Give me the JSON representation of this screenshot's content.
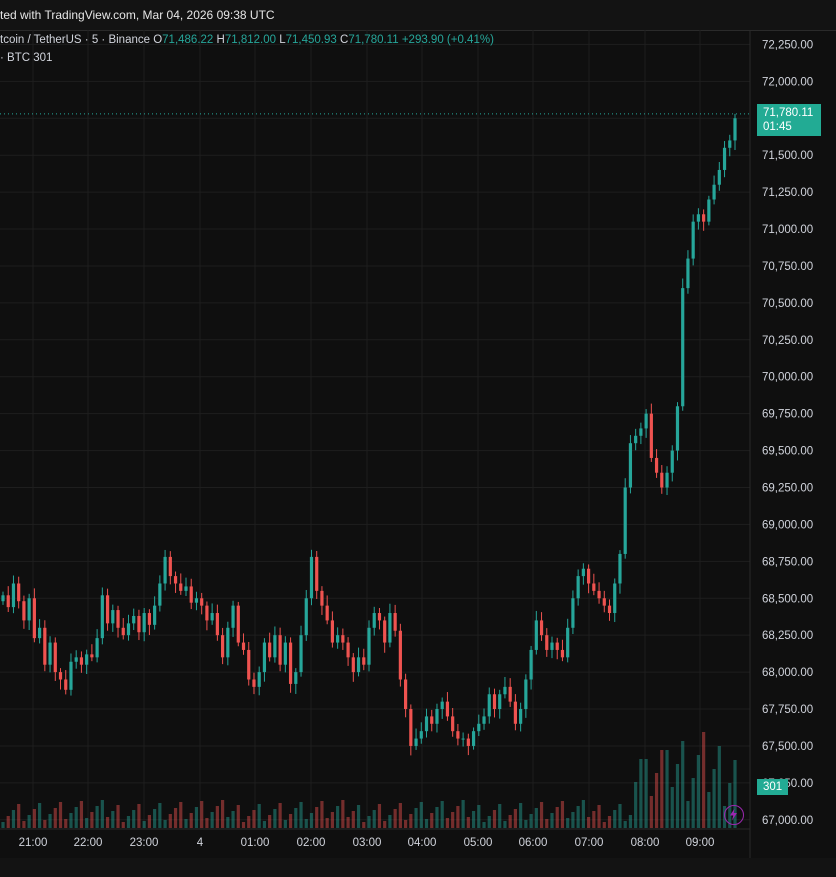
{
  "header": {
    "caption": "ted with TradingView.com, Mar 04, 2026 09:38 UTC"
  },
  "legend": {
    "symbol": "tcoin / TetherUS · 5 · Binance",
    "o_label": "O",
    "o_value": "71,486.22",
    "h_label": "H",
    "h_value": "71,812.00",
    "l_label": "L",
    "l_value": "71,450.93",
    "c_label": "C",
    "c_value": "71,780.11",
    "change": "+293.90 (+0.41%)",
    "volume_label": "· BTC",
    "volume_value": "301"
  },
  "colors": {
    "up": "#26a69a",
    "down": "#ef5350",
    "grid": "#1e1e1e",
    "axis_text": "#d1d4dc",
    "price_tag": "#22ab94"
  },
  "price_tag": {
    "price": "71,780.11",
    "countdown": "01:45"
  },
  "volume_tag": "301",
  "icons": {
    "bolt": "lightning-bolt-icon"
  },
  "chart_data": {
    "type": "candlestick",
    "interval": "5m",
    "price_axis": {
      "range": [
        66985,
        72280
      ],
      "ticks": [
        "72,250.00",
        "72,000.00",
        "71,750.00",
        "71,500.00",
        "71,250.00",
        "71,000.00",
        "70,750.00",
        "70,500.00",
        "70,250.00",
        "70,000.00",
        "69,750.00",
        "69,500.00",
        "69,250.00",
        "69,000.00",
        "68,750.00",
        "68,500.00",
        "68,250.00",
        "68,000.00",
        "67,750.00",
        "67,500.00",
        "67,250.00",
        "67,000.00"
      ],
      "tick_values": [
        72250,
        72000,
        71750,
        71500,
        71250,
        71000,
        70750,
        70500,
        70250,
        70000,
        69750,
        69500,
        69250,
        69000,
        68750,
        68500,
        68250,
        68000,
        67750,
        67500,
        67250,
        67000
      ]
    },
    "time_axis": {
      "labels": [
        "21:00",
        "22:00",
        "23:00",
        "4",
        "01:00",
        "02:00",
        "03:00",
        "04:00",
        "05:00",
        "06:00",
        "07:00",
        "08:00",
        "09:00"
      ]
    },
    "grid": true,
    "candles_close": [
      68520,
      68440,
      68600,
      68480,
      68350,
      68500,
      68230,
      68300,
      68050,
      68200,
      68000,
      67950,
      67880,
      68070,
      68100,
      68050,
      68120,
      68100,
      68230,
      68520,
      68330,
      68420,
      68300,
      68250,
      68330,
      68380,
      68270,
      68400,
      68320,
      68450,
      68600,
      68780,
      68650,
      68600,
      68550,
      68580,
      68470,
      68500,
      68450,
      68350,
      68400,
      68250,
      68100,
      68300,
      68450,
      68200,
      68150,
      67950,
      67900,
      68000,
      68200,
      68100,
      68250,
      68050,
      68200,
      67920,
      68000,
      68250,
      68500,
      68780,
      68550,
      68450,
      68350,
      68200,
      68250,
      68200,
      68100,
      68000,
      68100,
      68050,
      68300,
      68400,
      68350,
      68200,
      68400,
      68280,
      67950,
      67750,
      67500,
      67550,
      67600,
      67700,
      67650,
      67750,
      67800,
      67700,
      67600,
      67550,
      67550,
      67500,
      67600,
      67650,
      67700,
      67850,
      67750,
      67850,
      67900,
      67800,
      67650,
      67750,
      67950,
      68150,
      68350,
      68250,
      68150,
      68200,
      68150,
      68100,
      68300,
      68500,
      68650,
      68700,
      68600,
      68550,
      68500,
      68450,
      68400,
      68600,
      68800,
      69250,
      69550,
      69600,
      69650,
      69750,
      69450,
      69350,
      69250,
      69350,
      69500,
      69800,
      70600,
      70800,
      71050,
      71100,
      71050,
      71200,
      71300,
      71400,
      71550,
      71600,
      71750
    ],
    "volume_recent": [
      301
    ],
    "last_price": 71780.11
  }
}
